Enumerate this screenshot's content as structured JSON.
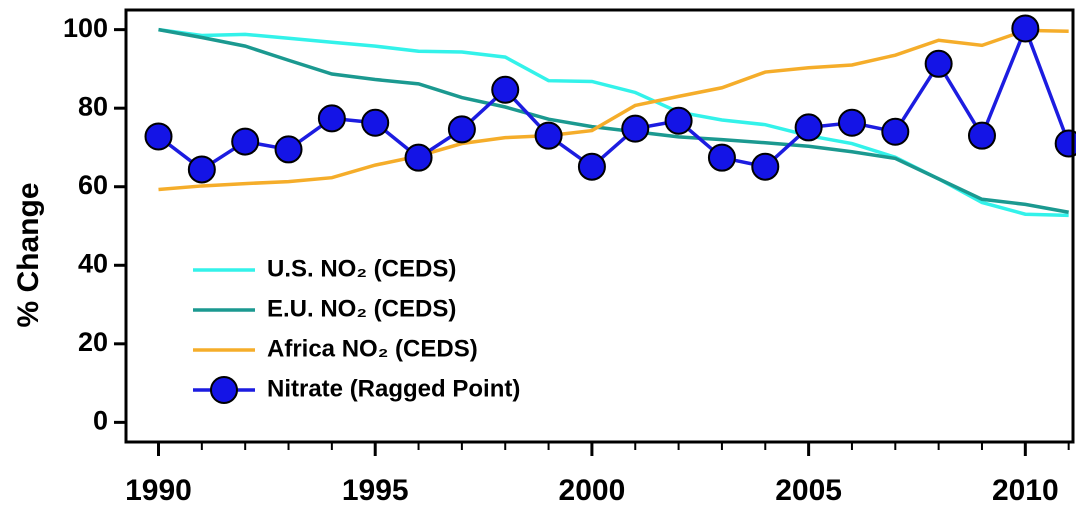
{
  "chart_data": {
    "type": "line",
    "y_label": "% Change",
    "x": [
      1990,
      1991,
      1992,
      1993,
      1994,
      1995,
      1996,
      1997,
      1998,
      1999,
      2000,
      2001,
      2002,
      2003,
      2004,
      2005,
      2006,
      2007,
      2008,
      2009,
      2010,
      2011
    ],
    "series": [
      {
        "name": "U.S. NO₂ (CEDS)",
        "color": "#33f2ea",
        "values": [
          100,
          98.5,
          98.8,
          97.8,
          96.8,
          95.8,
          94.5,
          94.3,
          93,
          87,
          86.8,
          84,
          79,
          77,
          75.8,
          73,
          71,
          67.5,
          62,
          56,
          53,
          52.7
        ]
      },
      {
        "name": "E.U. NO₂ (CEDS)",
        "color": "#1b9990",
        "values": [
          100,
          98,
          95.8,
          92.2,
          88.7,
          87.3,
          86.2,
          82.7,
          80.3,
          77.2,
          75.3,
          74,
          72.7,
          72,
          71.2,
          70.3,
          68.9,
          67.2,
          62,
          56.8,
          55.5,
          53.5
        ]
      },
      {
        "name": "Africa NO₂ (CEDS)",
        "color": "#f5ad2a",
        "values": [
          59.3,
          60.2,
          60.8,
          61.3,
          62.3,
          65.5,
          67.8,
          71,
          72.5,
          73,
          74.3,
          80.7,
          83,
          85.2,
          89.2,
          90.3,
          91,
          93.5,
          97.3,
          96,
          99.8,
          99.6
        ]
      },
      {
        "name": "Nitrate (Ragged Point)",
        "color": "#1c1ce0",
        "marker": "circle",
        "values": [
          72.8,
          64.4,
          71.5,
          69.5,
          77.4,
          76.3,
          67.4,
          74.6,
          84.7,
          73,
          65.1,
          74.8,
          76.8,
          67.4,
          65.1,
          75.1,
          76.3,
          74,
          91.3,
          73,
          100.3,
          71
        ]
      }
    ],
    "xlim": [
      1989.25,
      2011.1
    ],
    "xticks": [
      1990,
      1995,
      2000,
      2005,
      2010
    ],
    "ylim": [
      -5,
      105
    ],
    "yticks": [
      0,
      20,
      40,
      60,
      80,
      100
    ],
    "legend": "lower left"
  }
}
